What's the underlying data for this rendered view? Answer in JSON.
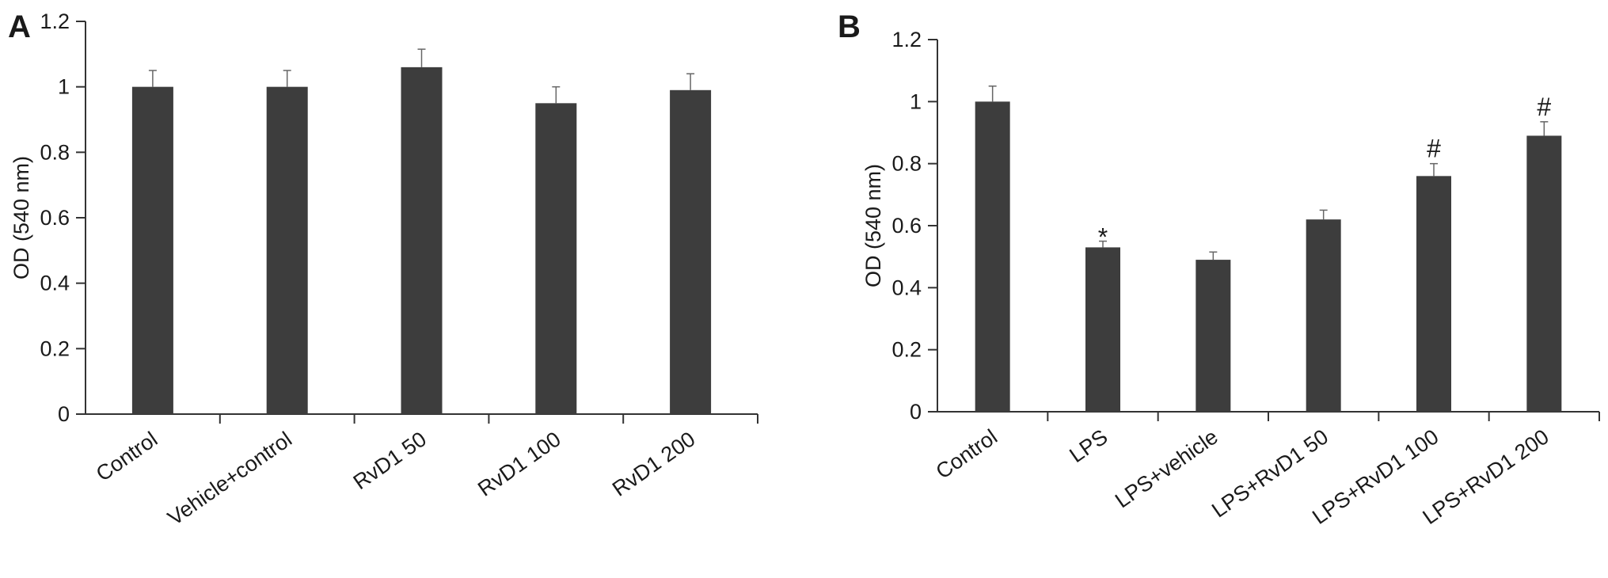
{
  "chart_data": [
    {
      "panel": "A",
      "type": "bar",
      "ylabel": "OD (540 nm)",
      "xlabel": "",
      "ylim": [
        0,
        1.2
      ],
      "yticks": [
        "0",
        "0.2",
        "0.4",
        "0.6",
        "0.8",
        "1",
        "1.2"
      ],
      "categories": [
        "Control",
        "Vehicle+control",
        "RvD1 50",
        "RvD1 100",
        "RvD1 200"
      ],
      "values": [
        1.0,
        1.0,
        1.06,
        0.95,
        0.99
      ],
      "errors": [
        0.05,
        0.05,
        0.055,
        0.05,
        0.05
      ],
      "annotations": [
        "",
        "",
        "",
        "",
        ""
      ],
      "bar_color": "#3d3d3d",
      "grid": false
    },
    {
      "panel": "B",
      "type": "bar",
      "ylabel": "OD (540 nm)",
      "xlabel": "",
      "ylim": [
        0,
        1.2
      ],
      "yticks": [
        "0",
        "0.2",
        "0.4",
        "0.6",
        "0.8",
        "1",
        "1.2"
      ],
      "categories": [
        "Control",
        "LPS",
        "LPS+vehicle",
        "LPS+RvD1 50",
        "LPS+RvD1 100",
        "LPS+RvD1 200"
      ],
      "values": [
        1.0,
        0.53,
        0.49,
        0.62,
        0.76,
        0.89
      ],
      "errors": [
        0.05,
        0.02,
        0.025,
        0.03,
        0.04,
        0.045
      ],
      "annotations": [
        "",
        "*",
        "",
        "",
        "#",
        "#"
      ],
      "bar_color": "#3d3d3d",
      "grid": false
    }
  ]
}
